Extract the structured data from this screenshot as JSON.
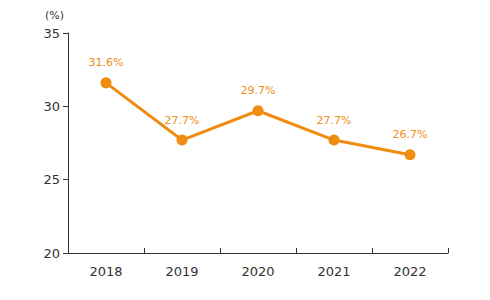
{
  "chart_data": {
    "type": "line",
    "ylabel": "(%)",
    "categories": [
      "2018",
      "2019",
      "2020",
      "2021",
      "2022"
    ],
    "values": [
      31.6,
      27.7,
      29.7,
      27.7,
      26.7
    ],
    "value_labels": [
      "31.6%",
      "27.7%",
      "29.7%",
      "27.7%",
      "26.7%"
    ],
    "color": "#ef8c12",
    "marker": "circle",
    "ylim": [
      20,
      35
    ],
    "yticks": [
      20,
      25,
      30,
      35
    ],
    "grid": false,
    "data_labels": true
  }
}
